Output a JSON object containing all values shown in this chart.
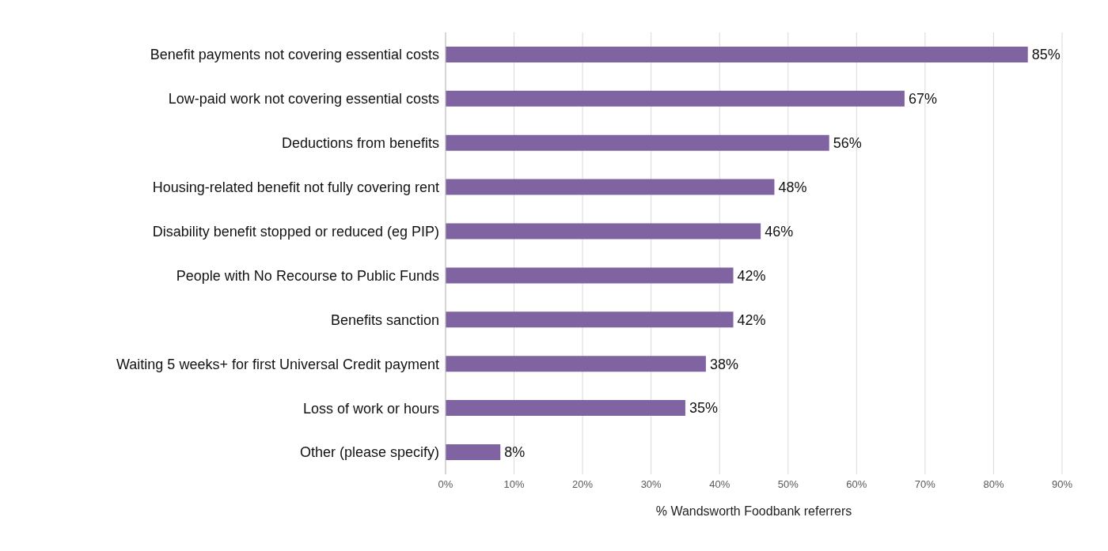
{
  "chart_data": {
    "type": "bar",
    "orientation": "horizontal",
    "xlabel": "% Wandsworth Foodbank referrers",
    "categories": [
      "Benefit payments not covering essential costs",
      "Low-paid work not covering essential costs",
      "Deductions from benefits",
      "Housing-related benefit not fully covering rent",
      "Disability benefit stopped or reduced (eg PIP)",
      "People with No Recourse to Public Funds",
      "Benefits sanction",
      "Waiting 5 weeks+ for first Universal Credit payment",
      "Loss of work or hours",
      "Other (please specify)"
    ],
    "values": [
      85,
      67,
      56,
      48,
      46,
      42,
      42,
      38,
      35,
      8
    ],
    "value_labels": [
      "85%",
      "67%",
      "56%",
      "48%",
      "46%",
      "42%",
      "42%",
      "38%",
      "35%",
      "8%"
    ],
    "color": "#8064a2",
    "xlim": [
      0,
      90
    ],
    "xticks": [
      {
        "value": 0,
        "label": "0%"
      },
      {
        "value": 10,
        "label": "10%"
      },
      {
        "value": 20,
        "label": "20%"
      },
      {
        "value": 30,
        "label": "30%"
      },
      {
        "value": 40,
        "label": "40%"
      },
      {
        "value": 50,
        "label": "50%"
      },
      {
        "value": 60,
        "label": "60%"
      },
      {
        "value": 70,
        "label": "70%"
      },
      {
        "value": 80,
        "label": "80%"
      },
      {
        "value": 90,
        "label": "90%"
      }
    ],
    "grid": "x"
  }
}
